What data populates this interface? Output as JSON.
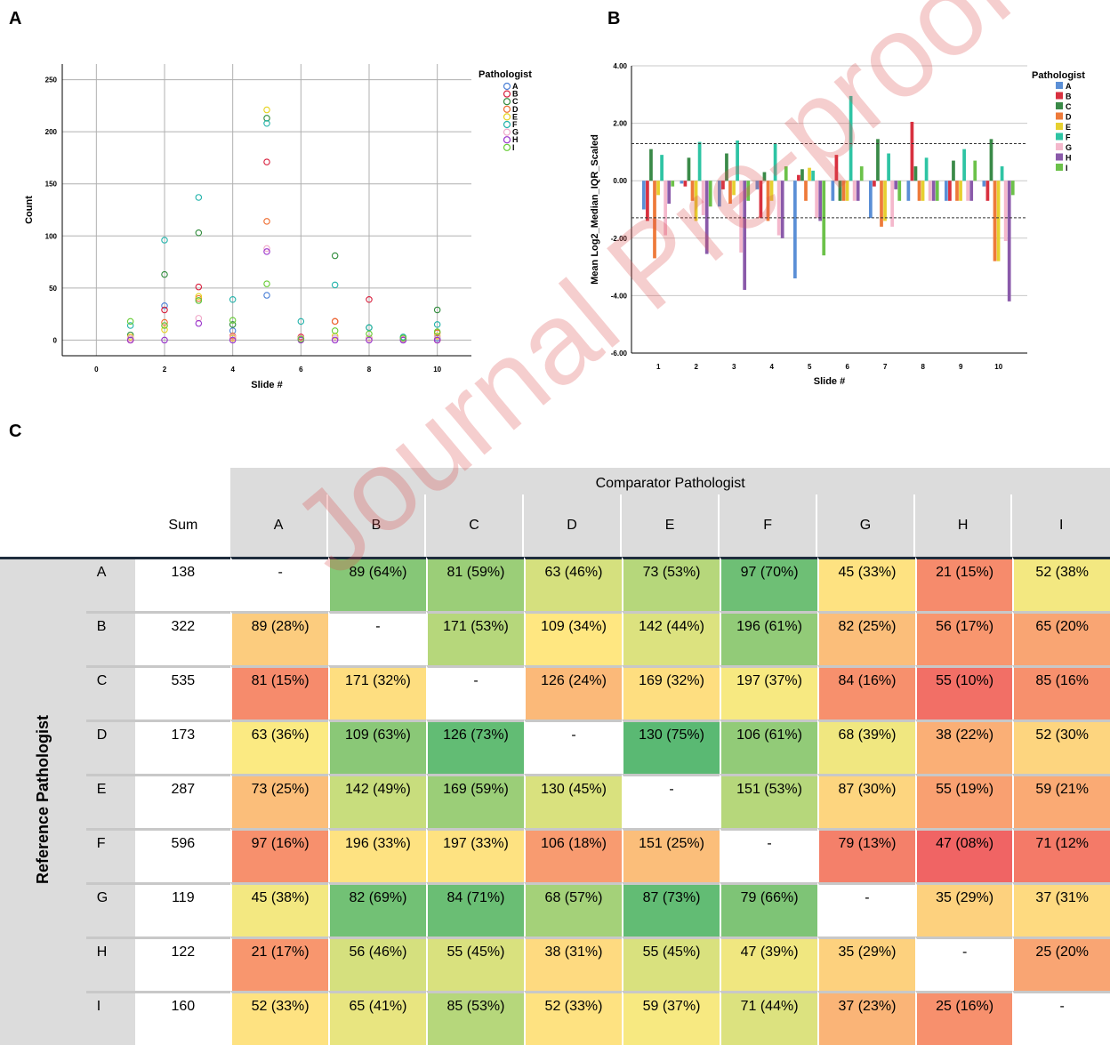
{
  "panels": {
    "a": "A",
    "b": "B",
    "c": "C"
  },
  "watermark": "Journal Pre-proof",
  "pathologists": [
    "A",
    "B",
    "C",
    "D",
    "E",
    "F",
    "G",
    "H",
    "I"
  ],
  "chart_data": [
    {
      "type": "scatter",
      "xlabel": "Slide #",
      "ylabel": "Count",
      "xlim": [
        -1,
        11
      ],
      "ylim": [
        -15,
        265
      ],
      "xticks": [
        "0",
        "2",
        "4",
        "6",
        "8",
        "10"
      ],
      "yticks": [
        "0",
        "50",
        "100",
        "150",
        "200",
        "250"
      ],
      "grid": true,
      "legend": {
        "title": "Pathologist",
        "position": "right"
      },
      "series": [
        {
          "name": "A",
          "color": "#4a7fd6",
          "values": [
            2,
            33,
            38,
            9,
            43,
            2,
            2,
            2,
            0,
            2
          ]
        },
        {
          "name": "B",
          "color": "#d81e3c",
          "values": [
            0,
            29,
            51,
            2,
            171,
            3,
            18,
            39,
            1,
            0
          ]
        },
        {
          "name": "C",
          "color": "#2e8b3a",
          "values": [
            5,
            63,
            103,
            15,
            213,
            2,
            81,
            12,
            2,
            29
          ]
        },
        {
          "name": "D",
          "color": "#ee6a2c",
          "values": [
            2,
            17,
            40,
            4,
            114,
            2,
            18,
            2,
            1,
            7
          ]
        },
        {
          "name": "E",
          "color": "#e6d21a",
          "values": [
            3,
            10,
            42,
            2,
            221,
            2,
            4,
            2,
            1,
            4
          ]
        },
        {
          "name": "F",
          "color": "#20b2aa",
          "values": [
            14,
            96,
            137,
            39,
            208,
            18,
            53,
            12,
            3,
            15
          ]
        },
        {
          "name": "G",
          "color": "#f0a8c8",
          "values": [
            2,
            14,
            21,
            3,
            88,
            2,
            2,
            2,
            1,
            3
          ]
        },
        {
          "name": "H",
          "color": "#9933cc",
          "values": [
            0,
            0,
            16,
            0,
            85,
            0,
            0,
            0,
            0,
            0
          ]
        },
        {
          "name": "I",
          "color": "#66cc33",
          "values": [
            18,
            14,
            38,
            19,
            54,
            1,
            9,
            6,
            2,
            8
          ]
        }
      ]
    },
    {
      "type": "bar",
      "xlabel": "Slide #",
      "ylabel": "Mean Log2_Median_IQR_Scaled",
      "categories": [
        "1",
        "2",
        "3",
        "4",
        "5",
        "6",
        "7",
        "8",
        "9",
        "10"
      ],
      "ylim": [
        -6,
        4
      ],
      "yticks": [
        "4.00",
        "2.00",
        "0.00",
        "-2.00",
        "-4.00",
        "-6.00"
      ],
      "reference_lines": [
        1.29,
        -1.29
      ],
      "grid": true,
      "legend": {
        "title": "Pathologist",
        "position": "right"
      },
      "series": [
        {
          "name": "A",
          "color": "#5b8fd6",
          "values": [
            -1.0,
            -0.1,
            -0.9,
            -0.3,
            -3.4,
            -0.7,
            -1.3,
            -0.7,
            -0.7,
            -0.2
          ]
        },
        {
          "name": "B",
          "color": "#d8303f",
          "values": [
            -1.4,
            -0.2,
            -0.3,
            -1.3,
            0.2,
            0.9,
            -0.2,
            2.05,
            -0.7,
            -0.7
          ]
        },
        {
          "name": "C",
          "color": "#3a8a48",
          "values": [
            1.1,
            0.8,
            0.95,
            0.3,
            0.4,
            -0.7,
            1.45,
            0.5,
            0.7,
            1.45
          ]
        },
        {
          "name": "D",
          "color": "#ee7a3a",
          "values": [
            -2.7,
            -0.7,
            -0.8,
            -1.4,
            -0.7,
            -0.7,
            -1.6,
            -0.7,
            -0.7,
            -2.8
          ]
        },
        {
          "name": "E",
          "color": "#e6d030",
          "values": [
            -0.5,
            -1.4,
            -0.5,
            -0.7,
            0.45,
            -0.7,
            -1.4,
            -0.7,
            -0.7,
            -2.8
          ]
        },
        {
          "name": "F",
          "color": "#2ec4a4",
          "values": [
            0.9,
            1.35,
            1.4,
            1.3,
            0.35,
            2.95,
            0.95,
            0.8,
            1.1,
            0.5
          ]
        },
        {
          "name": "G",
          "color": "#f4b8cc",
          "values": [
            -1.9,
            -1.2,
            -2.5,
            -1.9,
            -1.3,
            -0.7,
            -1.6,
            -0.7,
            -0.7,
            -2.1
          ]
        },
        {
          "name": "H",
          "color": "#8a5aaa",
          "values": [
            -0.8,
            -2.55,
            -3.8,
            -2.0,
            -1.4,
            -0.7,
            -0.3,
            -0.7,
            -0.7,
            -4.2
          ]
        },
        {
          "name": "I",
          "color": "#6cc24a",
          "values": [
            -0.2,
            -0.9,
            -0.7,
            0.5,
            -2.6,
            0.5,
            -0.7,
            -0.7,
            0.7,
            -0.5
          ]
        }
      ]
    },
    {
      "type": "table",
      "title": "Comparator Pathologist",
      "row_title": "Reference Pathologist",
      "sum_label": "Sum",
      "columns": [
        "A",
        "B",
        "C",
        "D",
        "E",
        "F",
        "G",
        "H",
        "I"
      ],
      "rows": [
        {
          "label": "A",
          "sum": "138",
          "cells": [
            "-",
            "89 (64%)",
            "81 (59%)",
            "63 (46%)",
            "73 (53%)",
            "97 (70%)",
            "45 (33%)",
            "21 (15%)",
            "52 (38%"
          ],
          "pct": [
            null,
            64,
            59,
            46,
            53,
            70,
            33,
            15,
            38
          ]
        },
        {
          "label": "B",
          "sum": "322",
          "cells": [
            "89 (28%)",
            "-",
            "171 (53%)",
            "109 (34%)",
            "142 (44%)",
            "196 (61%)",
            "82 (25%)",
            "56 (17%)",
            "65 (20%"
          ],
          "pct": [
            28,
            null,
            53,
            34,
            44,
            61,
            25,
            17,
            20
          ]
        },
        {
          "label": "C",
          "sum": "535",
          "cells": [
            "81 (15%)",
            "171 (32%)",
            "-",
            "126 (24%)",
            "169 (32%)",
            "197 (37%)",
            "84 (16%)",
            "55 (10%)",
            "85 (16%"
          ],
          "pct": [
            15,
            32,
            null,
            24,
            32,
            37,
            16,
            10,
            16
          ]
        },
        {
          "label": "D",
          "sum": "173",
          "cells": [
            "63 (36%)",
            "109 (63%)",
            "126 (73%)",
            "-",
            "130 (75%)",
            "106 (61%)",
            "68 (39%)",
            "38 (22%)",
            "52 (30%"
          ],
          "pct": [
            36,
            63,
            73,
            null,
            75,
            61,
            39,
            22,
            30
          ]
        },
        {
          "label": "E",
          "sum": "287",
          "cells": [
            "73 (25%)",
            "142 (49%)",
            "169 (59%)",
            "130 (45%)",
            "-",
            "151 (53%)",
            "87 (30%)",
            "55 (19%)",
            "59 (21%"
          ],
          "pct": [
            25,
            49,
            59,
            45,
            null,
            53,
            30,
            19,
            21
          ]
        },
        {
          "label": "F",
          "sum": "596",
          "cells": [
            "97 (16%)",
            "196 (33%)",
            "197 (33%)",
            "106 (18%)",
            "151 (25%)",
            "-",
            "79 (13%)",
            "47 (08%)",
            "71 (12%"
          ],
          "pct": [
            16,
            33,
            33,
            18,
            25,
            null,
            13,
            8,
            12
          ]
        },
        {
          "label": "G",
          "sum": "119",
          "cells": [
            "45 (38%)",
            "82 (69%)",
            "84 (71%)",
            "68 (57%)",
            "87 (73%)",
            "79 (66%)",
            "-",
            "35 (29%)",
            "37 (31%"
          ],
          "pct": [
            38,
            69,
            71,
            57,
            73,
            66,
            null,
            29,
            31
          ]
        },
        {
          "label": "H",
          "sum": "122",
          "cells": [
            "21 (17%)",
            "56 (46%)",
            "55 (45%)",
            "38 (31%)",
            "55 (45%)",
            "47 (39%)",
            "35 (29%)",
            "-",
            "25 (20%"
          ],
          "pct": [
            17,
            46,
            45,
            31,
            45,
            39,
            29,
            null,
            20
          ]
        },
        {
          "label": "I",
          "sum": "160",
          "cells": [
            "52 (33%)",
            "65 (41%)",
            "85 (53%)",
            "52 (33%)",
            "59 (37%)",
            "71 (44%)",
            "37 (23%)",
            "25 (16%)",
            "-"
          ],
          "pct": [
            33,
            41,
            53,
            33,
            37,
            44,
            23,
            16,
            null
          ]
        }
      ]
    }
  ]
}
